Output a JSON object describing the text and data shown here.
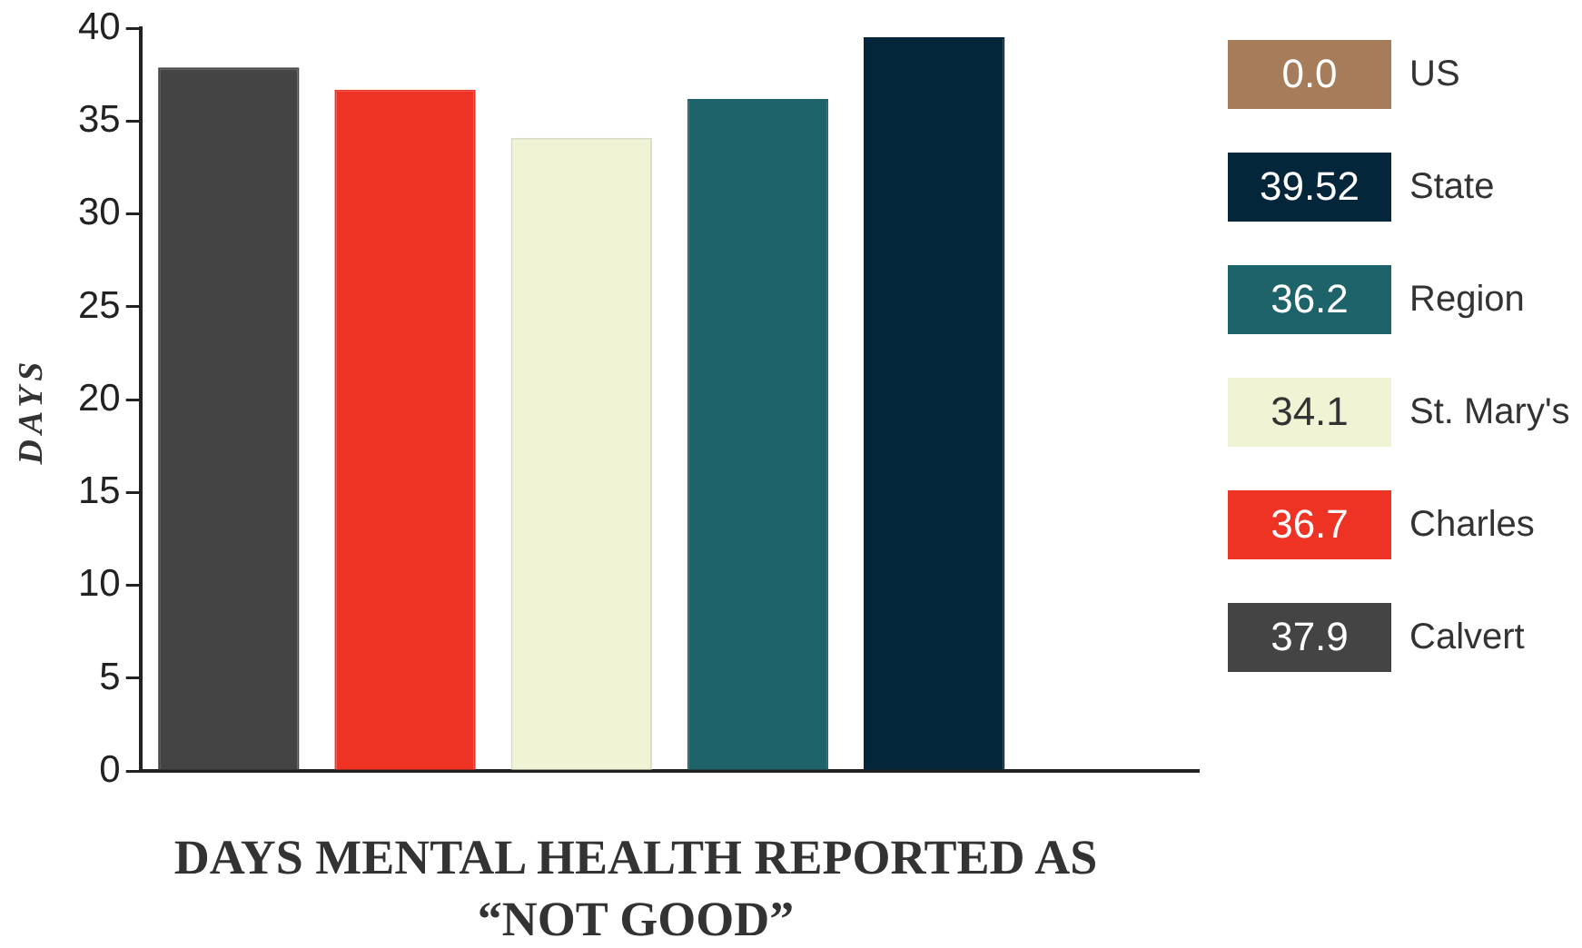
{
  "chart_data": {
    "type": "bar",
    "xlabel": "DAYS MENTAL HEALTH REPORTED AS “NOT GOOD”",
    "ylabel": "DAYS",
    "categories": [
      null,
      null,
      null,
      null,
      null,
      null
    ],
    "series": [
      {
        "name": "Calvert",
        "color": "#444444",
        "values": [
          37.9,
          null,
          null,
          null,
          null,
          null
        ]
      },
      {
        "name": "Charles",
        "color": "#ee3224",
        "values": [
          null,
          36.7,
          null,
          null,
          null,
          null
        ]
      },
      {
        "name": "St. Mary's",
        "color": "#f0f4d4",
        "values": [
          null,
          null,
          34.1,
          null,
          null,
          null
        ]
      },
      {
        "name": "Region",
        "color": "#1f636a",
        "values": [
          null,
          null,
          null,
          36.2,
          null,
          null
        ]
      },
      {
        "name": "State",
        "color": "#04263a",
        "values": [
          null,
          null,
          null,
          null,
          39.52,
          null
        ]
      },
      {
        "name": "US",
        "color": "#a67c5a",
        "values": [
          null,
          null,
          null,
          null,
          null,
          0.0
        ]
      }
    ],
    "annotations": [
      "37.9",
      "36.7",
      "34.1",
      "36.2",
      "39.52",
      "0.0"
    ],
    "ylim": [
      0,
      40
    ],
    "yticks": [
      0,
      5,
      10,
      15,
      20,
      25,
      30,
      35,
      40
    ],
    "grid": false,
    "legend": "right"
  }
}
